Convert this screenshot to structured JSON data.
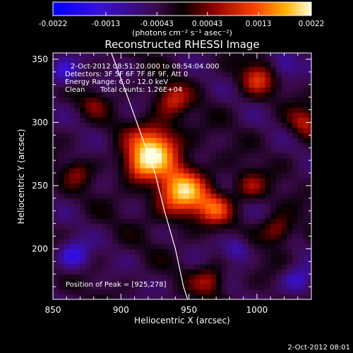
{
  "chart_data": {
    "type": "heatmap",
    "title": "Reconstructed RHESSI Image",
    "xlabel": "Heliocentric X (arcsec)",
    "ylabel": "Heliocentric Y (arcsec)",
    "xlim": [
      850,
      1040
    ],
    "ylim": [
      160,
      355
    ],
    "x_ticks": [
      850,
      900,
      950,
      1000
    ],
    "y_ticks": [
      200,
      250,
      300,
      350
    ],
    "x_tick_labels": [
      "850",
      "900",
      "950",
      "1000"
    ],
    "y_tick_labels": [
      "200",
      "250",
      "300",
      "350"
    ],
    "colorbar": {
      "range": [
        -0.0022,
        0.0022
      ],
      "tick_labels": [
        "-0.0022",
        "-0.0013",
        "-0.00043",
        "0.00043",
        "0.0013",
        "0.0022"
      ],
      "tick_values": [
        -0.0022,
        -0.0013,
        -0.00043,
        0.00043,
        0.0013,
        0.0022
      ],
      "unit_label": "(photons cm⁻² s⁻¹ asec⁻²)"
    },
    "annotations": [
      "2-Oct-2012 08:51:20.000 to 08:54:04.000",
      "Detectors: 3F 5F 6F 7F 8F 9F, Att 0",
      "Energy Range: 6.0 - 12.0 keV",
      "Clean",
      "Total counts: 1.26E+04"
    ],
    "peak": {
      "label": "Position of Peak = [925,278]",
      "x": 925,
      "y": 278
    },
    "limb_curve": [
      [
        893,
        355
      ],
      [
        905,
        320
      ],
      [
        915,
        290
      ],
      [
        925,
        260
      ],
      [
        932,
        230
      ],
      [
        940,
        200
      ],
      [
        946,
        170
      ],
      [
        949,
        160
      ]
    ],
    "sources": [
      {
        "x": 925,
        "y": 280,
        "radius": 13,
        "amplitude": 0.0022
      },
      {
        "x": 945,
        "y": 245,
        "radius": 14,
        "amplitude": 0.0021
      },
      {
        "x": 913,
        "y": 265,
        "radius": 9,
        "amplitude": 0.0012
      },
      {
        "x": 938,
        "y": 318,
        "radius": 9,
        "amplitude": 0.0011
      },
      {
        "x": 970,
        "y": 232,
        "radius": 9,
        "amplitude": 0.0012
      },
      {
        "x": 995,
        "y": 250,
        "radius": 8,
        "amplitude": 0.0009
      },
      {
        "x": 1015,
        "y": 215,
        "radius": 8,
        "amplitude": 0.0011
      },
      {
        "x": 1000,
        "y": 335,
        "radius": 9,
        "amplitude": 0.0012
      },
      {
        "x": 1035,
        "y": 300,
        "radius": 8,
        "amplitude": 0.001
      },
      {
        "x": 965,
        "y": 175,
        "radius": 8,
        "amplitude": 0.001
      },
      {
        "x": 868,
        "y": 260,
        "radius": 7,
        "amplitude": 0.0007
      },
      {
        "x": 880,
        "y": 315,
        "radius": 7,
        "amplitude": 0.0006
      },
      {
        "x": 865,
        "y": 195,
        "radius": 8,
        "amplitude": -0.0012
      },
      {
        "x": 858,
        "y": 340,
        "radius": 8,
        "amplitude": -0.0011
      },
      {
        "x": 1030,
        "y": 175,
        "radius": 8,
        "amplitude": -0.001
      },
      {
        "x": 985,
        "y": 200,
        "radius": 7,
        "amplitude": -0.0009
      },
      {
        "x": 1020,
        "y": 345,
        "radius": 7,
        "amplitude": -0.0008
      }
    ]
  },
  "footer": {
    "date": "2-Oct-2012 08:01"
  }
}
